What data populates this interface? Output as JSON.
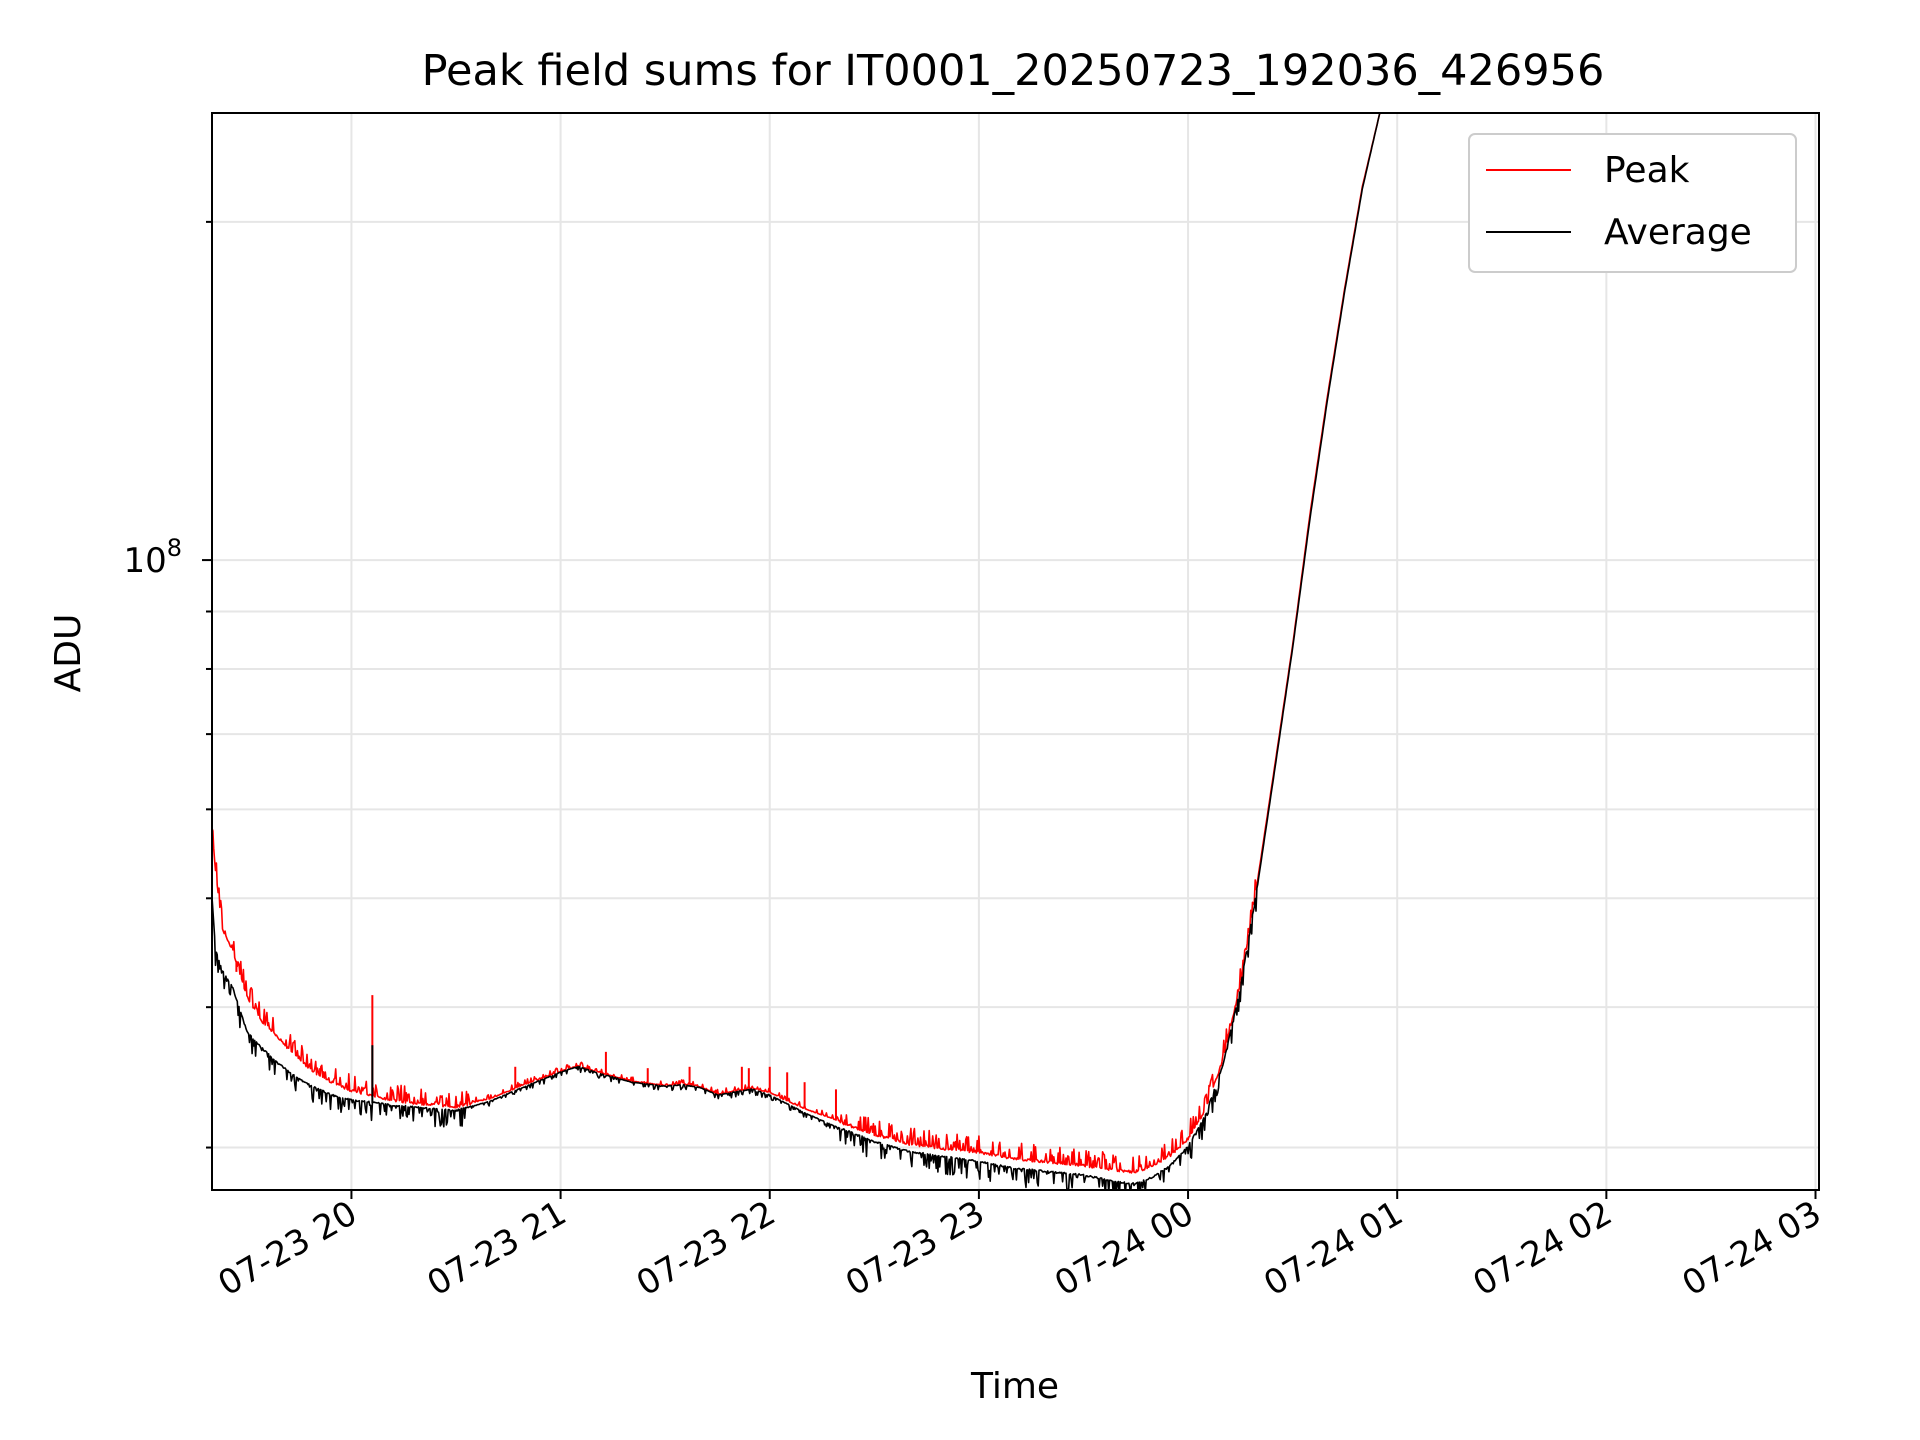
{
  "chart_data": {
    "type": "line",
    "title": "Peak field sums for IT0001_20250723_192036_426956",
    "xlabel": "Time",
    "ylabel": "ADU",
    "y_scale": "log",
    "x_range": [
      "07-23 19:20",
      "07-24 03:01"
    ],
    "ylim": [
      27500000,
      250000000
    ],
    "x_ticks": [
      "07-23 20",
      "07-23 21",
      "07-23 22",
      "07-23 23",
      "07-24 00",
      "07-24 01",
      "07-24 02",
      "07-24 03"
    ],
    "y_tick_labels": [
      {
        "base": "10",
        "exp": "8",
        "value": 100000000
      }
    ],
    "y_minor_ticks": [
      30000000,
      40000000,
      50000000,
      60000000,
      70000000,
      80000000,
      90000000,
      200000000
    ],
    "grid": true,
    "legend_position": "top-right",
    "series": [
      {
        "name": "Peak",
        "color": "#ff0000",
        "points": [
          [
            "07-23 19:20",
            58000000
          ],
          [
            "07-23 19:21",
            53000000
          ],
          [
            "07-23 19:23",
            47000000
          ],
          [
            "07-23 19:26",
            45000000
          ],
          [
            "07-23 19:30",
            41000000
          ],
          [
            "07-23 19:34",
            39000000
          ],
          [
            "07-23 19:38",
            38000000
          ],
          [
            "07-23 19:42",
            36800000
          ],
          [
            "07-23 19:46",
            35800000
          ],
          [
            "07-23 19:50",
            35000000
          ],
          [
            "07-23 19:55",
            34300000
          ],
          [
            "07-23 20:00",
            33800000
          ],
          [
            "07-23 20:05",
            33500000
          ],
          [
            "07-23 20:10",
            33200000
          ],
          [
            "07-23 20:20",
            32900000
          ],
          [
            "07-23 20:30",
            32700000
          ],
          [
            "07-23 20:40",
            33200000
          ],
          [
            "07-23 20:50",
            34200000
          ],
          [
            "07-23 21:00",
            35100000
          ],
          [
            "07-23 21:05",
            35500000
          ],
          [
            "07-23 21:10",
            35100000
          ],
          [
            "07-23 21:20",
            34400000
          ],
          [
            "07-23 21:30",
            34100000
          ],
          [
            "07-23 21:35",
            34200000
          ],
          [
            "07-23 21:40",
            34000000
          ],
          [
            "07-23 21:45",
            33500000
          ],
          [
            "07-23 21:50",
            33700000
          ],
          [
            "07-23 21:55",
            33900000
          ],
          [
            "07-23 22:00",
            33600000
          ],
          [
            "07-23 22:10",
            32500000
          ],
          [
            "07-23 22:20",
            31700000
          ],
          [
            "07-23 22:30",
            30900000
          ],
          [
            "07-23 22:40",
            30300000
          ],
          [
            "07-23 22:50",
            30000000
          ],
          [
            "07-23 23:00",
            29800000
          ],
          [
            "07-23 23:10",
            29400000
          ],
          [
            "07-23 23:20",
            29200000
          ],
          [
            "07-23 23:30",
            29000000
          ],
          [
            "07-23 23:40",
            28700000
          ],
          [
            "07-23 23:45",
            28600000
          ],
          [
            "07-23 23:50",
            29000000
          ],
          [
            "07-23 23:55",
            29600000
          ],
          [
            "07-24 00:00",
            30600000
          ],
          [
            "07-24 00:05",
            32500000
          ],
          [
            "07-24 00:10",
            36000000
          ],
          [
            "07-24 00:15",
            42000000
          ],
          [
            "07-24 00:20",
            52000000
          ],
          [
            "07-24 00:25",
            66000000
          ],
          [
            "07-24 00:30",
            84000000
          ],
          [
            "07-24 00:35",
            110000000
          ],
          [
            "07-24 00:40",
            140000000
          ],
          [
            "07-24 00:45",
            175000000
          ],
          [
            "07-24 00:50",
            215000000
          ],
          [
            "07-24 00:55",
            250000000
          ]
        ],
        "spikes": [
          [
            "07-23 19:27",
            43000000
          ],
          [
            "07-23 19:51",
            35300000
          ],
          [
            "07-23 20:06",
            41000000
          ],
          [
            "07-23 20:47",
            35400000
          ],
          [
            "07-23 21:13",
            36500000
          ],
          [
            "07-23 21:25",
            35300000
          ],
          [
            "07-23 21:37",
            35400000
          ],
          [
            "07-23 21:52",
            35400000
          ],
          [
            "07-23 21:54",
            35300000
          ],
          [
            "07-23 22:00",
            35400000
          ],
          [
            "07-23 22:05",
            35000000
          ],
          [
            "07-23 22:10",
            34300000
          ],
          [
            "07-23 22:19",
            33800000
          ]
        ]
      },
      {
        "name": "Average",
        "color": "#000000",
        "points": [
          [
            "07-23 19:20",
            50000000
          ],
          [
            "07-23 19:21",
            45000000
          ],
          [
            "07-23 19:23",
            43000000
          ],
          [
            "07-23 19:26",
            41500000
          ],
          [
            "07-23 19:30",
            38000000
          ],
          [
            "07-23 19:34",
            36800000
          ],
          [
            "07-23 19:38",
            35800000
          ],
          [
            "07-23 19:42",
            35000000
          ],
          [
            "07-23 19:46",
            34300000
          ],
          [
            "07-23 19:50",
            33800000
          ],
          [
            "07-23 19:55",
            33300000
          ],
          [
            "07-23 20:00",
            33000000
          ],
          [
            "07-23 20:05",
            32900000
          ],
          [
            "07-23 20:10",
            32700000
          ],
          [
            "07-23 20:20",
            32500000
          ],
          [
            "07-23 20:30",
            32300000
          ],
          [
            "07-23 20:40",
            33000000
          ],
          [
            "07-23 20:50",
            34000000
          ],
          [
            "07-23 21:00",
            35000000
          ],
          [
            "07-23 21:05",
            35400000
          ],
          [
            "07-23 21:10",
            35000000
          ],
          [
            "07-23 21:20",
            34300000
          ],
          [
            "07-23 21:30",
            34000000
          ],
          [
            "07-23 21:35",
            34100000
          ],
          [
            "07-23 21:40",
            33900000
          ],
          [
            "07-23 21:45",
            33400000
          ],
          [
            "07-23 21:50",
            33600000
          ],
          [
            "07-23 21:55",
            33800000
          ],
          [
            "07-23 22:00",
            33400000
          ],
          [
            "07-23 22:10",
            32200000
          ],
          [
            "07-23 22:20",
            31200000
          ],
          [
            "07-23 22:30",
            30300000
          ],
          [
            "07-23 22:40",
            29700000
          ],
          [
            "07-23 22:50",
            29400000
          ],
          [
            "07-23 23:00",
            29100000
          ],
          [
            "07-23 23:10",
            28700000
          ],
          [
            "07-23 23:20",
            28500000
          ],
          [
            "07-23 23:30",
            28300000
          ],
          [
            "07-23 23:40",
            27900000
          ],
          [
            "07-23 23:45",
            27800000
          ],
          [
            "07-23 23:50",
            28200000
          ],
          [
            "07-23 23:55",
            28900000
          ],
          [
            "07-24 00:00",
            30000000
          ],
          [
            "07-24 00:05",
            32000000
          ],
          [
            "07-24 00:10",
            35500000
          ],
          [
            "07-24 00:15",
            41500000
          ],
          [
            "07-24 00:20",
            51500000
          ],
          [
            "07-24 00:25",
            65500000
          ],
          [
            "07-24 00:30",
            83500000
          ],
          [
            "07-24 00:35",
            109000000
          ],
          [
            "07-24 00:40",
            139000000
          ],
          [
            "07-24 00:45",
            174000000
          ],
          [
            "07-24 00:50",
            214000000
          ],
          [
            "07-24 00:55",
            250000000
          ]
        ],
        "spikes": [
          [
            "07-23 20:06",
            37000000
          ]
        ]
      }
    ]
  }
}
